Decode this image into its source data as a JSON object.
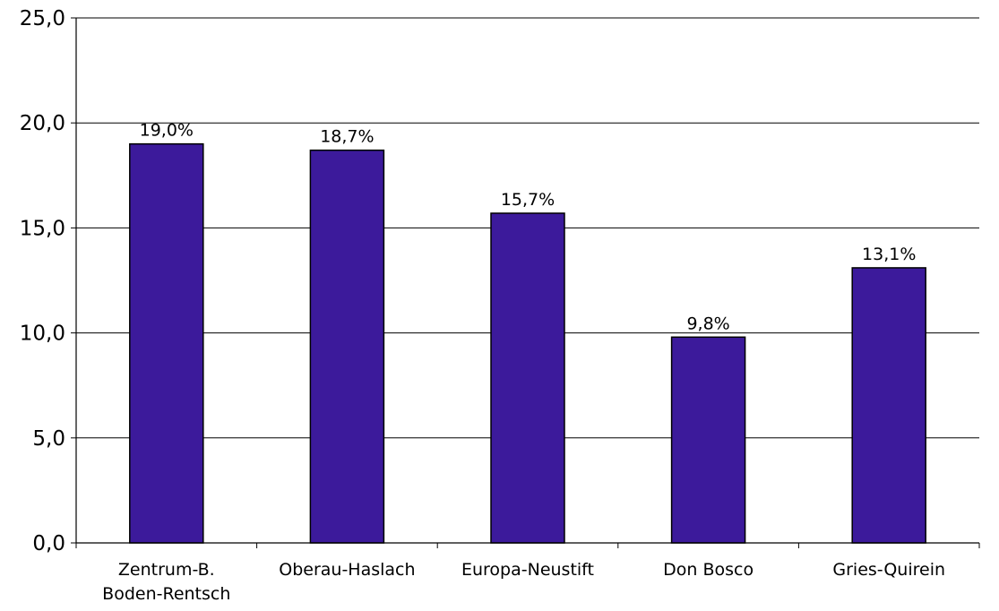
{
  "chart_data": {
    "type": "bar",
    "categories": [
      [
        "Zentrum-B.",
        "Boden-Rentsch"
      ],
      [
        "Oberau-Haslach"
      ],
      [
        "Europa-Neustift"
      ],
      [
        "Don Bosco"
      ],
      [
        "Gries-Quirein"
      ]
    ],
    "values": [
      19.0,
      18.7,
      15.7,
      9.8,
      13.1
    ],
    "data_labels": [
      "19,0%",
      "18,7%",
      "15,7%",
      "9,8%",
      "13,1%"
    ],
    "ylim": [
      0,
      25
    ],
    "yticks": [
      "0,0",
      "5,0",
      "10,0",
      "15,0",
      "20,0",
      "25,0"
    ],
    "grid": true,
    "legend": "none",
    "colors": {
      "bar": "#3c1a9b",
      "grid": "#000000"
    }
  }
}
